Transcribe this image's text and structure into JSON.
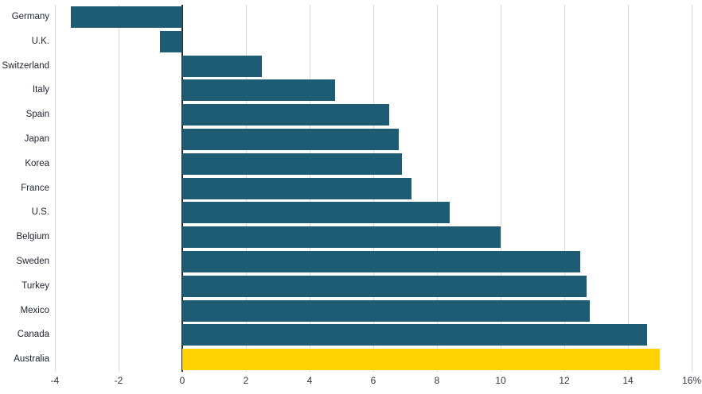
{
  "chart_data": {
    "type": "bar",
    "orientation": "horizontal",
    "title": "",
    "xlabel": "",
    "ylabel": "",
    "categories": [
      "Germany",
      "U.K.",
      "Switzerland",
      "Italy",
      "Spain",
      "Japan",
      "Korea",
      "France",
      "U.S.",
      "Belgium",
      "Sweden",
      "Turkey",
      "Mexico",
      "Canada",
      "Australia"
    ],
    "values": [
      -3.5,
      -0.7,
      2.5,
      4.8,
      6.5,
      6.8,
      6.9,
      7.2,
      8.4,
      10.0,
      12.5,
      12.7,
      12.8,
      14.6,
      15.0
    ],
    "unit": "%",
    "highlight_category": "Australia",
    "bar_color": "#1d5c72",
    "highlight_color": "#ffd200",
    "label_color": "#1e2330",
    "xlim": [
      -4,
      16
    ],
    "x_ticks": [
      -4,
      -2,
      0,
      2,
      4,
      6,
      8,
      10,
      12,
      14,
      16
    ],
    "x_tick_labels": [
      "-4",
      "-2",
      "0",
      "2",
      "4",
      "6",
      "8",
      "10",
      "12",
      "14",
      "16%"
    ],
    "grid": true,
    "legend": "none"
  }
}
